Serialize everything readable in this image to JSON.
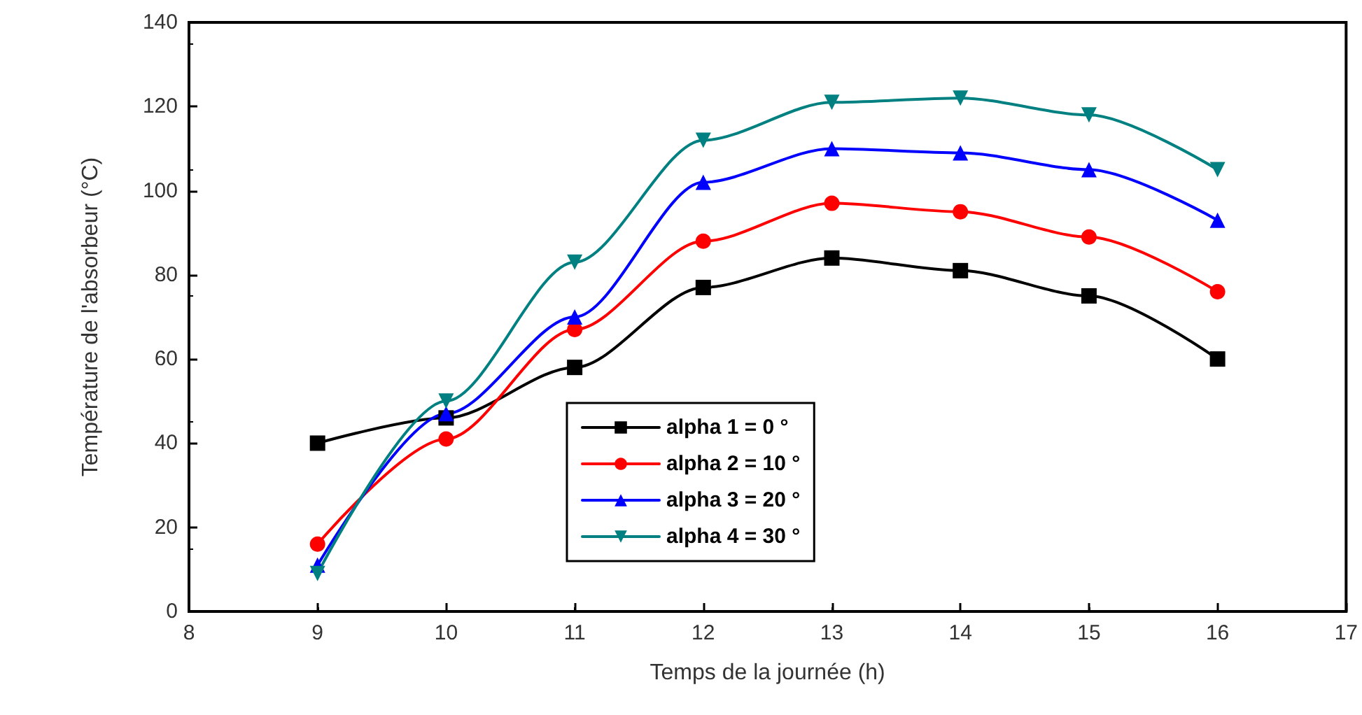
{
  "chart_data": {
    "type": "line",
    "xlabel": "Temps de la journée (h)",
    "ylabel": "Température de l'absorbeur (°C)",
    "x": [
      9,
      10,
      11,
      12,
      13,
      14,
      15,
      16
    ],
    "series": [
      {
        "name": "alpha 1 = 0 °",
        "color": "#000000",
        "marker": "square",
        "values": [
          40,
          46,
          58,
          77,
          84,
          81,
          75,
          60
        ]
      },
      {
        "name": "alpha 2 = 10 °",
        "color": "#ff0000",
        "marker": "circle",
        "values": [
          16,
          41,
          67,
          88,
          97,
          95,
          89,
          76
        ]
      },
      {
        "name": "alpha 3 = 20 °",
        "color": "#0000ff",
        "marker": "triangle",
        "values": [
          11,
          47,
          70,
          102,
          110,
          109,
          105,
          93
        ]
      },
      {
        "name": "alpha 4 = 30 °",
        "color": "#008080",
        "marker": "triangle-down",
        "values": [
          9,
          50,
          83,
          112,
          121,
          122,
          118,
          105
        ]
      }
    ],
    "xlim": [
      8,
      17
    ],
    "xticks": [
      8,
      9,
      10,
      11,
      12,
      13,
      14,
      15,
      16,
      17
    ],
    "ylim": [
      0,
      140
    ],
    "yticks": [
      0,
      20,
      40,
      60,
      80,
      100,
      120,
      140
    ],
    "grid": false,
    "legend": "bottom",
    "line_style": "solid"
  }
}
